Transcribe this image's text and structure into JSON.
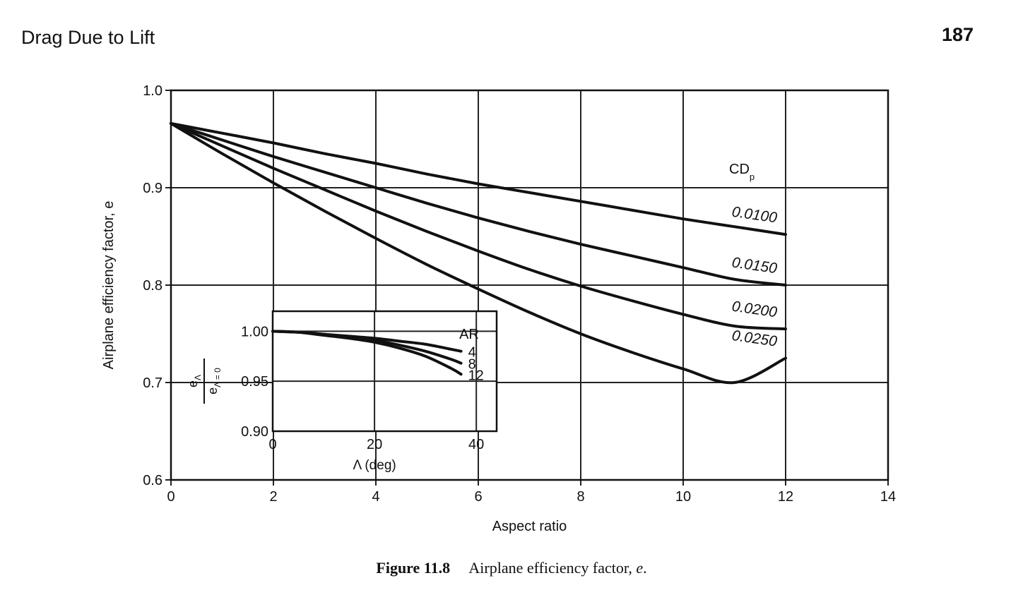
{
  "page": {
    "section_title": "Drag Due to Lift",
    "page_number": "187"
  },
  "caption": {
    "label": "Figure 11.8",
    "text": "Airplane efficiency factor,",
    "variable": "e",
    "end": "."
  },
  "chart_data": [
    {
      "type": "line",
      "xlabel": "Aspect ratio",
      "ylabel": "Airplane efficiency factor, e",
      "xlim": [
        0,
        14
      ],
      "ylim": [
        0.6,
        1.0
      ],
      "xticks": [
        "0",
        "2",
        "4",
        "6",
        "8",
        "10",
        "12",
        "14"
      ],
      "yticks": [
        "0.6",
        "0.7",
        "0.8",
        "0.9",
        "1.0"
      ],
      "grid": true,
      "legend_title": "CD",
      "legend_title_sub": "p",
      "legend_placement": "right, at line ends",
      "series": [
        {
          "name": "0.0100",
          "x": [
            0,
            1,
            2,
            3,
            4,
            5,
            6,
            7,
            8,
            9,
            10,
            11,
            12
          ],
          "y": [
            0.966,
            0.956,
            0.946,
            0.935,
            0.925,
            0.914,
            0.904,
            0.895,
            0.886,
            0.877,
            0.868,
            0.86,
            0.852
          ]
        },
        {
          "name": "0.0150",
          "x": [
            0,
            1,
            2,
            3,
            4,
            5,
            6,
            7,
            8,
            9,
            10,
            11,
            12
          ],
          "y": [
            0.966,
            0.949,
            0.932,
            0.916,
            0.9,
            0.884,
            0.869,
            0.855,
            0.842,
            0.83,
            0.818,
            0.806,
            0.8
          ]
        },
        {
          "name": "0.0200",
          "x": [
            0,
            1,
            2,
            3,
            4,
            5,
            6,
            7,
            8,
            9,
            10,
            11,
            12
          ],
          "y": [
            0.966,
            0.943,
            0.92,
            0.898,
            0.876,
            0.855,
            0.835,
            0.816,
            0.799,
            0.784,
            0.77,
            0.758,
            0.755
          ]
        },
        {
          "name": "0.0250",
          "x": [
            0,
            1,
            2,
            3,
            4,
            5,
            6,
            7,
            8,
            9,
            10,
            11,
            12
          ],
          "y": [
            0.966,
            0.935,
            0.905,
            0.876,
            0.848,
            0.821,
            0.796,
            0.772,
            0.75,
            0.731,
            0.714,
            0.7,
            0.725
          ]
        }
      ]
    },
    {
      "type": "line",
      "inset": true,
      "xlabel": "Λ (deg)",
      "ylabel_num": "e",
      "ylabel_num_sub": "Λ",
      "ylabel_den": "e",
      "ylabel_den_sub": "Λ = 0",
      "xlim": [
        0,
        44
      ],
      "ylim": [
        0.9,
        1.02
      ],
      "xticks": [
        "0",
        "20",
        "40"
      ],
      "yticks": [
        "0.90",
        "0.95",
        "1.00"
      ],
      "grid": true,
      "legend_title": "AR",
      "legend_placement": "right, at line ends",
      "series": [
        {
          "name": "4",
          "x": [
            0,
            5,
            10,
            15,
            20,
            25,
            30,
            35,
            37
          ],
          "y": [
            1.0,
            0.999,
            0.997,
            0.995,
            0.993,
            0.99,
            0.987,
            0.982,
            0.98
          ]
        },
        {
          "name": "8",
          "x": [
            0,
            5,
            10,
            15,
            20,
            25,
            30,
            35,
            37
          ],
          "y": [
            1.0,
            0.999,
            0.997,
            0.994,
            0.991,
            0.986,
            0.98,
            0.972,
            0.968
          ]
        },
        {
          "name": "12",
          "x": [
            0,
            5,
            10,
            15,
            20,
            25,
            30,
            35,
            37
          ],
          "y": [
            1.0,
            0.999,
            0.996,
            0.993,
            0.989,
            0.983,
            0.975,
            0.963,
            0.957
          ]
        }
      ]
    }
  ]
}
